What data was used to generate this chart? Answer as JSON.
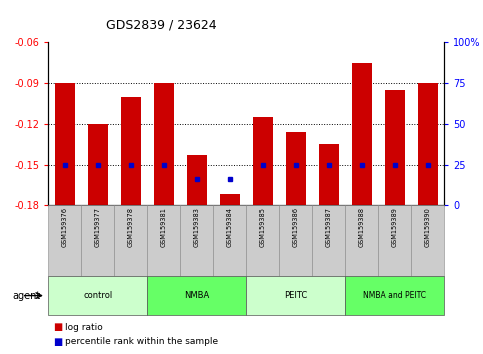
{
  "title": "GDS2839 / 23624",
  "samples": [
    "GSM159376",
    "GSM159377",
    "GSM159378",
    "GSM159381",
    "GSM159383",
    "GSM159384",
    "GSM159385",
    "GSM159386",
    "GSM159387",
    "GSM159388",
    "GSM159389",
    "GSM159390"
  ],
  "log_ratio": [
    -0.09,
    -0.12,
    -0.1,
    -0.09,
    -0.143,
    -0.172,
    -0.115,
    -0.126,
    -0.135,
    -0.075,
    -0.095,
    -0.09
  ],
  "percentile_rank_pct": [
    25,
    25,
    25,
    25,
    16,
    16,
    25,
    25,
    25,
    25,
    25,
    25
  ],
  "groups": [
    {
      "label": "control",
      "color": "#ccffcc",
      "start": 0,
      "end": 3
    },
    {
      "label": "NMBA",
      "color": "#66ff66",
      "start": 3,
      "end": 6
    },
    {
      "label": "PEITC",
      "color": "#ccffcc",
      "start": 6,
      "end": 9
    },
    {
      "label": "NMBA and PEITC",
      "color": "#66ff66",
      "start": 9,
      "end": 12
    }
  ],
  "ylim_left": [
    -0.18,
    -0.06
  ],
  "ylim_right": [
    0,
    100
  ],
  "yticks_left": [
    -0.18,
    -0.15,
    -0.12,
    -0.09,
    -0.06
  ],
  "yticks_right": [
    0,
    25,
    50,
    75,
    100
  ],
  "bar_color": "#cc0000",
  "percentile_color": "#0000cc",
  "legend_log_ratio": "log ratio",
  "legend_percentile": "percentile rank within the sample",
  "agent_label": "agent"
}
